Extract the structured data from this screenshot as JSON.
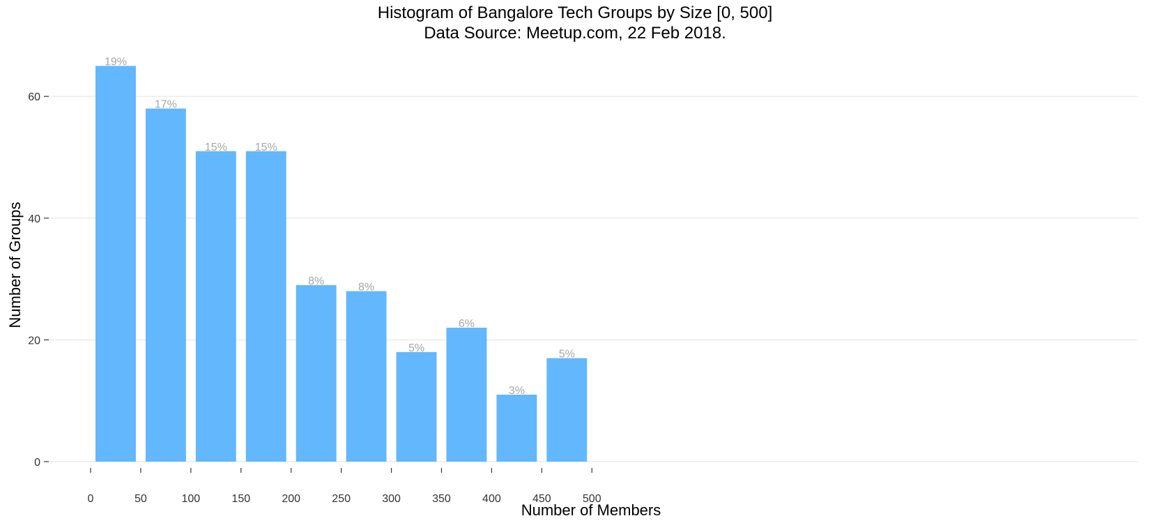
{
  "chart_data": {
    "type": "bar",
    "title": "Histogram of Bangalore Tech Groups by Size [0, 500]",
    "subtitle": "Data Source: Meetup.com, 22 Feb 2018.",
    "xlabel": "Number of Members",
    "ylabel": "Number of Groups",
    "bins": [
      {
        "x0": 0,
        "x1": 50,
        "value": 65,
        "label": "19%"
      },
      {
        "x0": 50,
        "x1": 100,
        "value": 58,
        "label": "17%"
      },
      {
        "x0": 100,
        "x1": 150,
        "value": 51,
        "label": "15%"
      },
      {
        "x0": 150,
        "x1": 200,
        "value": 51,
        "label": "15%"
      },
      {
        "x0": 200,
        "x1": 250,
        "value": 29,
        "label": "8%"
      },
      {
        "x0": 250,
        "x1": 300,
        "value": 28,
        "label": "8%"
      },
      {
        "x0": 300,
        "x1": 350,
        "value": 18,
        "label": "5%"
      },
      {
        "x0": 350,
        "x1": 400,
        "value": 22,
        "label": "6%"
      },
      {
        "x0": 400,
        "x1": 450,
        "value": 11,
        "label": "3%"
      },
      {
        "x0": 450,
        "x1": 500,
        "value": 17,
        "label": "5%"
      }
    ],
    "x_ticks": [
      0,
      50,
      100,
      150,
      200,
      250,
      300,
      350,
      400,
      450,
      500
    ],
    "y_ticks": [
      0,
      20,
      40,
      60
    ],
    "xlim": [
      0,
      500
    ],
    "ylim": [
      0,
      65
    ],
    "grid": true,
    "bar_color": "#63b7fd",
    "label_color": "#a6a6a6"
  }
}
